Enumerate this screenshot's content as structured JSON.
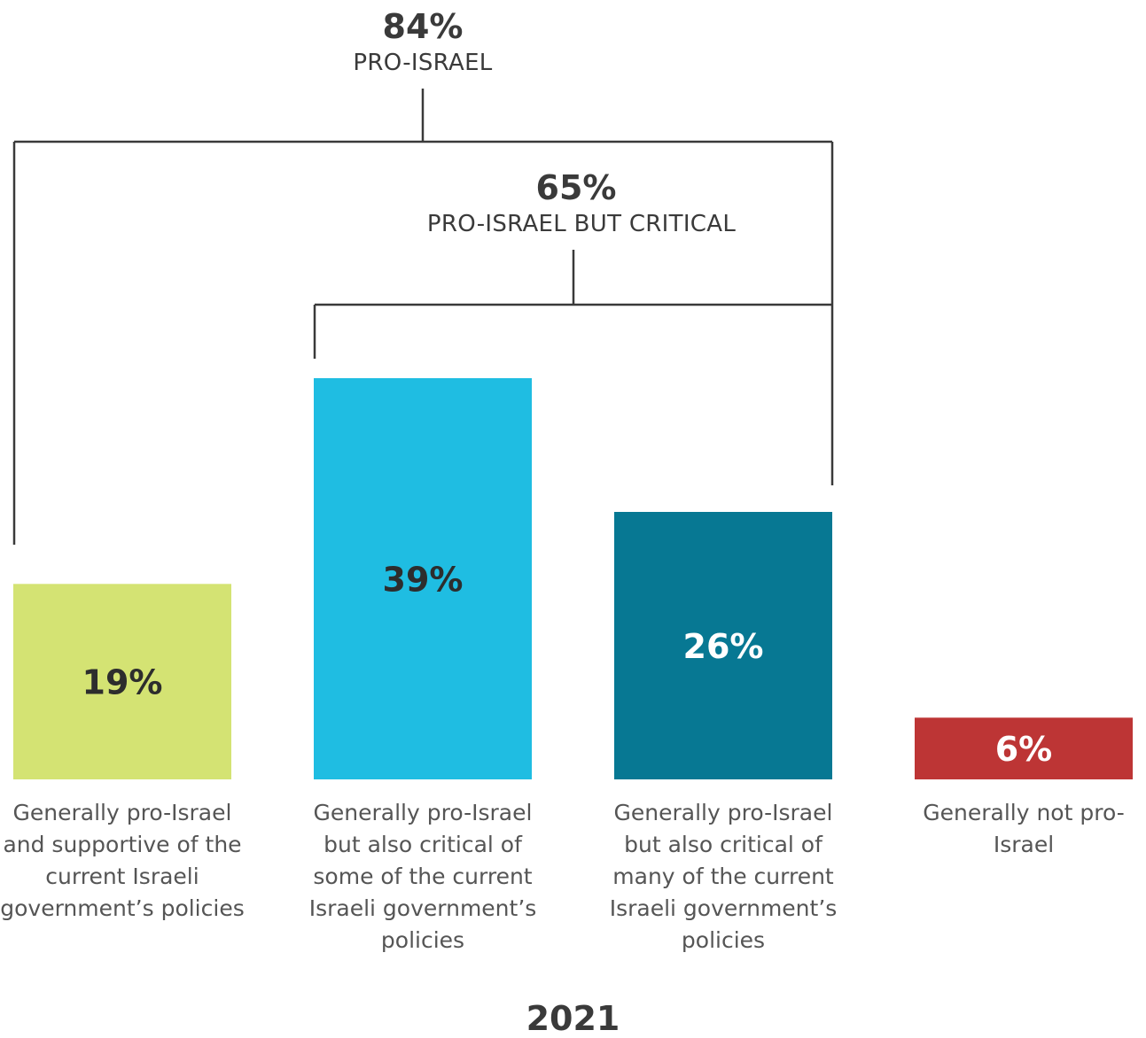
{
  "chart_data": {
    "type": "bar",
    "categories": [
      "Generally pro-Israel and supportive of the current Israeli government’s policies",
      "Generally pro-Israel but also critical of some of the current Israeli government’s policies",
      "Generally pro-Israel but also critical of many of the current Israeli government’s policies",
      "Generally not pro-Israel"
    ],
    "values": [
      19,
      39,
      26,
      6
    ],
    "value_labels": [
      "19%",
      "39%",
      "26%",
      "6%"
    ],
    "colors": [
      "#d4e373",
      "#1fbde2",
      "#077893",
      "#bd3535"
    ],
    "value_label_colors": [
      "#2d2d2d",
      "#2d2d2d",
      "#ffffff",
      "#ffffff"
    ],
    "ylim": [
      0,
      39
    ],
    "grid": false,
    "xlabel": "2021",
    "groupings": [
      {
        "value": "84%",
        "label": "PRO-ISRAEL",
        "covers": [
          0,
          1,
          2
        ]
      },
      {
        "value": "65%",
        "label": "PRO-ISRAEL BUT CRITICAL",
        "covers": [
          1,
          2
        ]
      }
    ]
  }
}
